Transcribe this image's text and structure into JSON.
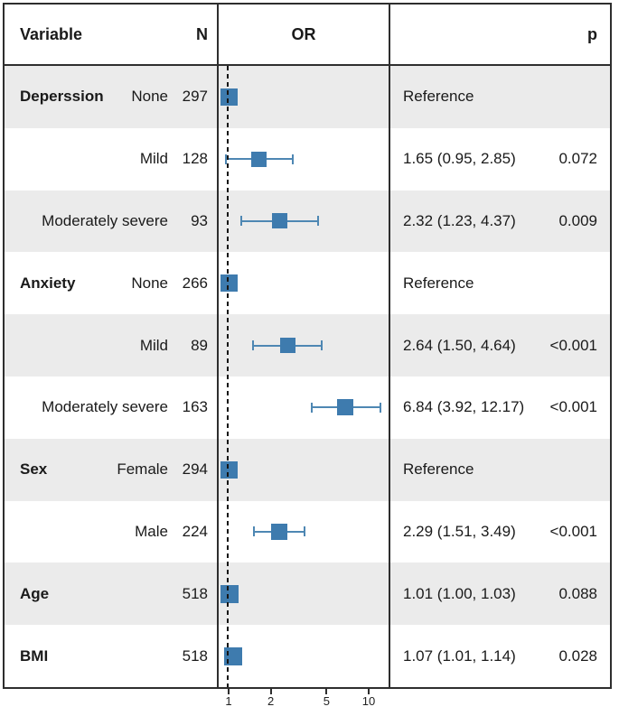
{
  "header": {
    "variable": "Variable",
    "n": "N",
    "or": "OR",
    "p": "p"
  },
  "axis": {
    "tick_labels": [
      "1",
      "2",
      "5",
      "10"
    ]
  },
  "colors": {
    "box": "#3e7bae",
    "whisker": "#4e87b3",
    "stripe": "#ebebeb",
    "border": "#2e2e2e",
    "reference_line": "#151515"
  },
  "chart_data": {
    "type": "forest_plot",
    "x_scale": "log10",
    "x_axis_ticks": [
      1,
      2,
      5,
      10
    ],
    "x_range": [
      0.85,
      14
    ],
    "reference_line": 1.0,
    "columns": [
      "Variable",
      "N",
      "OR",
      "p"
    ],
    "rows": [
      {
        "variable": "Deperssion",
        "category": "None",
        "n": "297",
        "or": 1.0,
        "ci_low": null,
        "ci_high": null,
        "or_label": "Reference",
        "p": "",
        "shaded": true
      },
      {
        "variable": "",
        "category": "Mild",
        "n": "128",
        "or": 1.65,
        "ci_low": 0.95,
        "ci_high": 2.85,
        "or_label": "1.65 (0.95, 2.85)",
        "p": "0.072",
        "shaded": false
      },
      {
        "variable": "",
        "category": "Moderately severe",
        "n": "93",
        "or": 2.32,
        "ci_low": 1.23,
        "ci_high": 4.37,
        "or_label": "2.32 (1.23, 4.37)",
        "p": "0.009",
        "shaded": true
      },
      {
        "variable": "Anxiety",
        "category": "None",
        "n": "266",
        "or": 1.0,
        "ci_low": null,
        "ci_high": null,
        "or_label": "Reference",
        "p": "",
        "shaded": false
      },
      {
        "variable": "",
        "category": "Mild",
        "n": "89",
        "or": 2.64,
        "ci_low": 1.5,
        "ci_high": 4.64,
        "or_label": "2.64 (1.50, 4.64)",
        "p": "<0.001",
        "shaded": true
      },
      {
        "variable": "",
        "category": "Moderately severe",
        "n": "163",
        "or": 6.84,
        "ci_low": 3.92,
        "ci_high": 12.17,
        "or_label": "6.84 (3.92, 12.17)",
        "p": "<0.001",
        "shaded": false
      },
      {
        "variable": "Sex",
        "category": "Female",
        "n": "294",
        "or": 1.0,
        "ci_low": null,
        "ci_high": null,
        "or_label": "Reference",
        "p": "",
        "shaded": true
      },
      {
        "variable": "",
        "category": "Male",
        "n": "224",
        "or": 2.29,
        "ci_low": 1.51,
        "ci_high": 3.49,
        "or_label": "2.29 (1.51, 3.49)",
        "p": "<0.001",
        "shaded": false
      },
      {
        "variable": "Age",
        "category": "",
        "n": "518",
        "or": 1.01,
        "ci_low": 1.0,
        "ci_high": 1.03,
        "or_label": "1.01 (1.00, 1.03)",
        "p": "0.088",
        "shaded": true
      },
      {
        "variable": "BMI",
        "category": "",
        "n": "518",
        "or": 1.07,
        "ci_low": 1.01,
        "ci_high": 1.14,
        "or_label": "1.07 (1.01, 1.14)",
        "p": "0.028",
        "shaded": false
      }
    ]
  }
}
